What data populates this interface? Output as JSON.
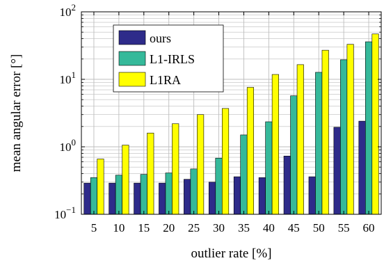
{
  "chart_data": {
    "type": "bar",
    "xlabel": "outlier rate [%]",
    "ylabel": "mean angular error [°]",
    "yscale": "log",
    "ylim": [
      0.1,
      100
    ],
    "y_ticks": [
      {
        "base": "10",
        "exp": "−1"
      },
      {
        "base": "10",
        "exp": "0"
      },
      {
        "base": "10",
        "exp": "1"
      },
      {
        "base": "10",
        "exp": "2"
      }
    ],
    "grid": true,
    "legend_position": "top-left",
    "categories": [
      "5",
      "10",
      "15",
      "20",
      "25",
      "30",
      "35",
      "40",
      "45",
      "50",
      "55",
      "60"
    ],
    "series": [
      {
        "name": "ours",
        "color": "#2e2b8a",
        "values": [
          0.29,
          0.29,
          0.29,
          0.29,
          0.33,
          0.3,
          0.36,
          0.35,
          0.73,
          0.36,
          1.95,
          2.4
        ]
      },
      {
        "name": "L1-IRLS",
        "color": "#35b99a",
        "values": [
          0.35,
          0.38,
          0.39,
          0.41,
          0.47,
          0.68,
          1.5,
          2.35,
          5.7,
          12.7,
          19.5,
          36
        ]
      },
      {
        "name": "L1RA",
        "color": "#ffff00",
        "values": [
          0.66,
          1.06,
          1.6,
          2.2,
          3.0,
          3.7,
          7.6,
          11.8,
          16.5,
          27,
          33,
          47
        ]
      }
    ]
  }
}
